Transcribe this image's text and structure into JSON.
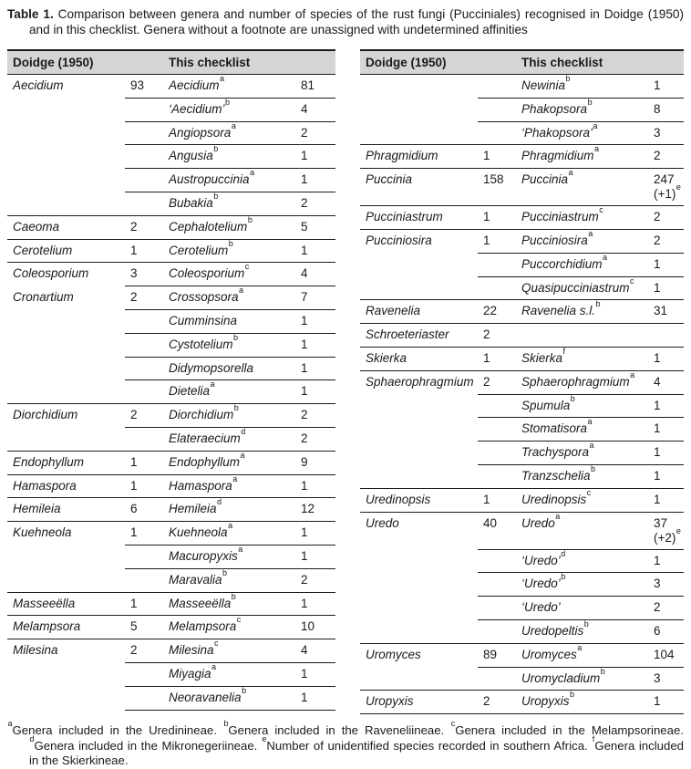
{
  "title": {
    "label": "Table 1.",
    "text": "Comparison between genera and number of species of the rust fungi (Pucciniales) recognised in Doidge (1950) and in this checklist. Genera without a footnote are unassigned with undetermined affinities"
  },
  "colors": {
    "header_bg": "#d5d5d5",
    "rule": "#1c1c1c",
    "text": "#1a1a1a"
  },
  "table": {
    "doidge_header": "Doidge (1950)",
    "checklist_header": "This checklist",
    "panels": [
      {
        "bottom_rule": "partial",
        "rows": [
          {
            "rule": "none",
            "d": "Aecidium",
            "dn": "93",
            "c": "Aecidium",
            "cs": "a",
            "cn": "81"
          },
          {
            "rule": "partial",
            "c": "‘Aecidium’",
            "cs": "b",
            "cn": "4"
          },
          {
            "rule": "partial",
            "c": "Angiopsora",
            "cs": "a",
            "cn": "2"
          },
          {
            "rule": "partial",
            "c": "Angusia",
            "cs": "b",
            "cn": "1"
          },
          {
            "rule": "partial",
            "c": "Austropuccinia",
            "cs": "a",
            "cn": "1"
          },
          {
            "rule": "partial",
            "c": "Bubakia",
            "cs": "b",
            "cn": "2"
          },
          {
            "rule": "full",
            "d": "Caeoma",
            "dn": "2",
            "c": "Cephalotelium",
            "cs": "b",
            "cn": "5"
          },
          {
            "rule": "full",
            "d": "Cerotelium",
            "dn": "1",
            "c": "Cerotelium",
            "cs": "b",
            "cn": "1"
          },
          {
            "rule": "full",
            "d": "Coleosporium",
            "dn": "3",
            "c": "Coleosporium",
            "cs": "c",
            "cn": "4"
          },
          {
            "rule": "partial",
            "d": "Cronartium",
            "dn": "2",
            "c": "Crossopsora",
            "cs": "a",
            "cn": "7"
          },
          {
            "rule": "partial",
            "c": "Cumminsina",
            "cn": "1"
          },
          {
            "rule": "partial",
            "c": "Cystotelium",
            "cs": "b",
            "cn": "1"
          },
          {
            "rule": "partial",
            "c": "Didymopsorella",
            "cn": "1"
          },
          {
            "rule": "partial",
            "c": "Dietelia",
            "cs": "a",
            "cn": "1"
          },
          {
            "rule": "full",
            "d": "Diorchidium",
            "dn": "2",
            "c": "Diorchidium",
            "cs": "b",
            "cn": "2"
          },
          {
            "rule": "partial",
            "c": "Elateraecium",
            "cs": "d",
            "cn": "2"
          },
          {
            "rule": "full",
            "d": "Endophyllum",
            "dn": "1",
            "c": "Endophyllum",
            "cs": "a",
            "cn": "9"
          },
          {
            "rule": "full",
            "d": "Hamaspora",
            "dn": "1",
            "c": "Hamaspora",
            "cs": "a",
            "cn": "1"
          },
          {
            "rule": "full",
            "d": "Hemileia",
            "dn": "6",
            "c": "Hemileia",
            "cs": "d",
            "cn": "12"
          },
          {
            "rule": "full",
            "d": "Kuehneola",
            "dn": "1",
            "c": "Kuehneola",
            "cs": "a",
            "cn": "1"
          },
          {
            "rule": "partial",
            "c": "Macuropyxis",
            "cs": "a",
            "cn": "1"
          },
          {
            "rule": "partial",
            "c": "Maravalia",
            "cs": "b",
            "cn": "2"
          },
          {
            "rule": "full",
            "d": "Masseeëlla",
            "dn": "1",
            "c": "Masseeëlla",
            "cs": "b",
            "cn": "1"
          },
          {
            "rule": "full",
            "d": "Melampsora",
            "dn": "5",
            "c": "Melampsora",
            "cs": "c",
            "cn": "10"
          },
          {
            "rule": "full",
            "d": "Milesina",
            "dn": "2",
            "c": "Milesina",
            "cs": "c",
            "cn": "4"
          },
          {
            "rule": "partial",
            "c": "Miyagia",
            "cs": "a",
            "cn": "1"
          },
          {
            "rule": "partial",
            "c": "Neoravanelia",
            "cs": "b",
            "cn": "1"
          }
        ]
      },
      {
        "bottom_rule": "full",
        "rows": [
          {
            "rule": "none",
            "c": "Newinia",
            "cs": "b",
            "cn": "1"
          },
          {
            "rule": "partial",
            "c": "Phakopsora",
            "cs": "b",
            "cn": "8"
          },
          {
            "rule": "partial",
            "c": "‘Phakopsora’",
            "cs": "a",
            "cn": "3"
          },
          {
            "rule": "full",
            "d": "Phragmidium",
            "dn": "1",
            "c": "Phragmidium",
            "cs": "a",
            "cn": "2"
          },
          {
            "rule": "full",
            "d": "Puccinia",
            "dn": "158",
            "c": "Puccinia",
            "cs": "a",
            "cn": "247",
            "cn2": "(+1)",
            "cn2s": "e",
            "tall": true
          },
          {
            "rule": "full",
            "d": "Pucciniastrum",
            "dn": "1",
            "c": "Pucciniastrum",
            "cs": "c",
            "cn": "2"
          },
          {
            "rule": "full",
            "d": "Pucciniosira",
            "dn": "1",
            "c": "Pucciniosira",
            "cs": "a",
            "cn": "2"
          },
          {
            "rule": "partial",
            "c": "Puccorchidium",
            "cs": "a",
            "cn": "1"
          },
          {
            "rule": "partial",
            "c": "Quasipucciniastrum",
            "cs": "c",
            "cn": "1"
          },
          {
            "rule": "full",
            "d": "Ravenelia",
            "dn": "22",
            "c": "Ravenelia s.l.",
            "cs": "b",
            "cn": "31"
          },
          {
            "rule": "full",
            "d": "Schroeteriaster",
            "dn": "2"
          },
          {
            "rule": "full",
            "d": "Skierka",
            "dn": "1",
            "c": "Skierka",
            "cs": "f",
            "cn": "1"
          },
          {
            "rule": "full",
            "d": "Sphaerophragmium",
            "dn": "2",
            "c": "Sphaerophragmium",
            "cs": "a",
            "cn": "4"
          },
          {
            "rule": "partial",
            "c": "Spumula",
            "cs": "b",
            "cn": "1"
          },
          {
            "rule": "partial",
            "c": "Stomatisora",
            "cs": "a",
            "cn": "1"
          },
          {
            "rule": "partial",
            "c": "Trachyspora",
            "cs": "a",
            "cn": "1"
          },
          {
            "rule": "partial",
            "c": "Tranzschelia",
            "cs": "b",
            "cn": "1"
          },
          {
            "rule": "full",
            "d": "Uredinopsis",
            "dn": "1",
            "c": "Uredinopsis",
            "cs": "c",
            "cn": "1"
          },
          {
            "rule": "full",
            "d": "Uredo",
            "dn": "40",
            "c": "Uredo",
            "cs": "a",
            "cn": "37",
            "cn2": "(+2)",
            "cn2s": "e",
            "tall": true
          },
          {
            "rule": "partial",
            "c": "‘Uredo’",
            "cs": "d",
            "cn": "1"
          },
          {
            "rule": "partial",
            "c": "‘Uredo’",
            "cs": "b",
            "cn": "3"
          },
          {
            "rule": "partial",
            "c": "‘Uredo’",
            "cn": "2"
          },
          {
            "rule": "partial",
            "c": "Uredopeltis",
            "cs": "b",
            "cn": "6"
          },
          {
            "rule": "full",
            "d": "Uromyces",
            "dn": "89",
            "c": "Uromyces",
            "cs": "a",
            "cn": "104"
          },
          {
            "rule": "partial",
            "c": "Uromycladium",
            "cs": "b",
            "cn": "3"
          },
          {
            "rule": "full",
            "d": "Uropyxis",
            "dn": "2",
            "c": "Uropyxis",
            "cs": "b",
            "cn": "1"
          }
        ]
      }
    ]
  },
  "footnotes": [
    {
      "sup": "a",
      "text": "Genera included in the Uredinineae."
    },
    {
      "sup": "b",
      "text": "Genera included in the Raveneliineae."
    },
    {
      "sup": "c",
      "text": "Genera included in the Melampsorineae."
    },
    {
      "sup": "d",
      "text": "Genera included in the Mikronegeriineae."
    },
    {
      "sup": "e",
      "text": "Number of unidentified species recorded in southern Africa."
    },
    {
      "sup": "f",
      "text": "Genera included in the Skierkineae."
    }
  ]
}
